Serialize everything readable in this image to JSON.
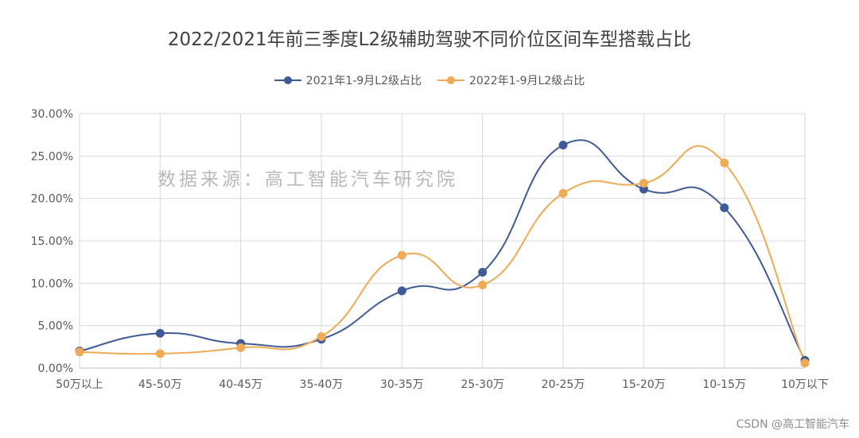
{
  "chart_data": {
    "type": "line",
    "title": "2022/2021年前三季度L2级辅助驾驶不同价位区间车型搭载占比",
    "categories": [
      "50万以上",
      "45-50万",
      "40-45万",
      "35-40万",
      "30-35万",
      "25-30万",
      "20-25万",
      "15-20万",
      "10-15万",
      "10万以下"
    ],
    "series": [
      {
        "name": "2021年1-9月L2级占比",
        "color": "#3f5a97",
        "values": [
          2.0,
          4.1,
          2.9,
          3.4,
          9.1,
          11.3,
          26.3,
          21.1,
          18.9,
          0.9
        ]
      },
      {
        "name": "2022年1-9月L2级占比",
        "color": "#eeaa54",
        "values": [
          1.9,
          1.7,
          2.4,
          3.7,
          13.3,
          9.8,
          20.6,
          21.8,
          24.2,
          0.6
        ]
      }
    ],
    "yticks": [
      "0.00%",
      "5.00%",
      "10.00%",
      "15.00%",
      "20.00%",
      "25.00%",
      "30.00%"
    ],
    "ylim": [
      0,
      30
    ],
    "grid": true,
    "legend_position": "top",
    "smooth": true
  },
  "watermark": "数据来源：高工智能汽车研究院",
  "credit": "CSDN @高工智能汽车"
}
